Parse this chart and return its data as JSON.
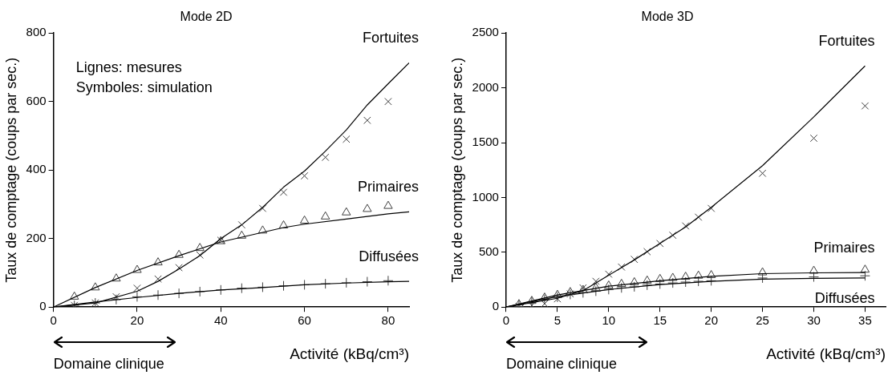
{
  "chart_data": [
    {
      "type": "line",
      "title": "Mode 2D",
      "xlabel": "Activité (kBq/cm³)",
      "ylabel": "Taux de comptage (coups par sec.)",
      "xlim": [
        0,
        85
      ],
      "xticks": [
        0,
        20,
        40,
        60,
        80
      ],
      "ylim": [
        0,
        800
      ],
      "yticks": [
        0,
        200,
        400,
        600,
        800
      ],
      "grid": false,
      "legend": false,
      "series": [
        {
          "type": "line",
          "name": "Fortuites",
          "marker": "none",
          "color": "#000000",
          "x": [
            0,
            10,
            20,
            25,
            30,
            35,
            40,
            45,
            50,
            55,
            60,
            65,
            70,
            75,
            80,
            85
          ],
          "values": [
            0,
            12,
            46,
            75,
            111,
            150,
            200,
            240,
            291,
            350,
            397,
            455,
            517,
            590,
            652,
            713
          ]
        },
        {
          "type": "scatter",
          "marker": "cross",
          "color": "#404040",
          "x": [
            5,
            10,
            15,
            20,
            25,
            30,
            35,
            40,
            45,
            50,
            55,
            60,
            65,
            70,
            75,
            80
          ],
          "values": [
            5,
            12,
            30,
            55,
            82,
            115,
            152,
            195,
            240,
            288,
            335,
            383,
            437,
            490,
            545,
            600
          ]
        },
        {
          "type": "line",
          "name": "Primaires",
          "marker": "none",
          "color": "#000000",
          "x": [
            0,
            10,
            20,
            30,
            35,
            40,
            50,
            55,
            60,
            70,
            80,
            85
          ],
          "values": [
            0,
            57,
            107,
            150,
            170,
            190,
            218,
            232,
            242,
            257,
            272,
            278
          ]
        },
        {
          "type": "scatter",
          "marker": "triangle",
          "color": "#404040",
          "x": [
            5,
            10,
            15,
            20,
            25,
            30,
            35,
            40,
            45,
            50,
            55,
            60,
            65,
            70,
            75,
            80
          ],
          "values": [
            30,
            57,
            83,
            108,
            130,
            152,
            172,
            192,
            208,
            223,
            238,
            252,
            264,
            276,
            286,
            295
          ]
        },
        {
          "type": "line",
          "name": "Diffusées",
          "marker": "none",
          "color": "#000000",
          "x": [
            0,
            10,
            20,
            30,
            40,
            50,
            60,
            70,
            80,
            85
          ],
          "values": [
            0,
            15,
            28,
            40,
            50,
            57,
            65,
            70,
            74,
            75
          ]
        },
        {
          "type": "scatter",
          "color": "#404040",
          "x": [
            5,
            10,
            15,
            20,
            25,
            30,
            35,
            40,
            45,
            50,
            55,
            60,
            65,
            70,
            75,
            80
          ],
          "values": [
            5,
            12,
            22,
            30,
            35,
            40,
            45,
            50,
            55,
            58,
            62,
            65,
            68,
            71,
            74,
            77
          ]
        }
      ],
      "annotations": [
        "Lignes: mesures",
        "Symboles: simulation",
        "Domaine clinique"
      ]
    },
    {
      "type": "line",
      "title": "Mode 3D",
      "xlabel": "Activité (kBq/cm³)",
      "ylabel": "Taux de comptage (coups par sec.)",
      "xlim": [
        0,
        37
      ],
      "xticks": [
        0,
        5,
        10,
        15,
        20,
        25,
        30,
        35
      ],
      "ylim": [
        0,
        2500
      ],
      "yticks": [
        0,
        500,
        1000,
        1500,
        2000,
        2500
      ],
      "grid": false,
      "legend": false,
      "series": [
        {
          "type": "line",
          "name": "Fortuites",
          "marker": "none",
          "color": "#000000",
          "x": [
            0,
            5,
            7.5,
            10,
            12.5,
            15,
            17.5,
            20,
            25,
            30,
            35
          ],
          "values": [
            0,
            80,
            150,
            290,
            430,
            580,
            730,
            910,
            1290,
            1735,
            2200
          ]
        },
        {
          "type": "scatter",
          "marker": "cross",
          "color": "#404040",
          "x": [
            1.25,
            2.5,
            3.75,
            5,
            6.25,
            7.5,
            8.75,
            10,
            11.25,
            12.5,
            13.75,
            15,
            16.25,
            17.5,
            18.75,
            20,
            25,
            30,
            35
          ],
          "values": [
            5,
            15,
            30,
            75,
            120,
            175,
            235,
            300,
            365,
            435,
            505,
            580,
            655,
            740,
            820,
            900,
            1220,
            1540,
            1835
          ]
        },
        {
          "type": "line",
          "name": "Primaires",
          "marker": "none",
          "color": "#000000",
          "x": [
            0,
            5,
            10,
            15,
            20,
            25,
            30,
            35
          ],
          "values": [
            0,
            110,
            190,
            240,
            280,
            305,
            312,
            315
          ]
        },
        {
          "type": "scatter",
          "marker": "triangle",
          "color": "#404040",
          "x": [
            1.25,
            2.5,
            3.75,
            5,
            6.25,
            7.5,
            8.75,
            10,
            11.25,
            12.5,
            13.75,
            15,
            16.25,
            17.5,
            18.75,
            20,
            25,
            30,
            35
          ],
          "values": [
            25,
            55,
            85,
            110,
            135,
            155,
            175,
            195,
            210,
            225,
            240,
            255,
            265,
            275,
            285,
            290,
            315,
            330,
            340
          ]
        },
        {
          "type": "line",
          "name": "Diffusées",
          "marker": "none",
          "color": "#000000",
          "x": [
            0,
            5,
            10,
            15,
            20,
            25,
            30,
            35
          ],
          "values": [
            0,
            95,
            160,
            205,
            235,
            255,
            262,
            265
          ]
        },
        {
          "type": "scatter",
          "color": "#404040",
          "x": [
            1.25,
            2.5,
            3.75,
            5,
            6.25,
            7.5,
            8.75,
            10,
            11.25,
            12.5,
            13.75,
            15,
            16.25,
            17.5,
            18.75,
            20,
            25,
            30,
            35
          ],
          "values": [
            20,
            45,
            70,
            90,
            115,
            130,
            145,
            160,
            175,
            185,
            200,
            210,
            220,
            228,
            235,
            240,
            265,
            275,
            285
          ]
        }
      ],
      "annotations": [
        "Domaine clinique"
      ]
    }
  ]
}
